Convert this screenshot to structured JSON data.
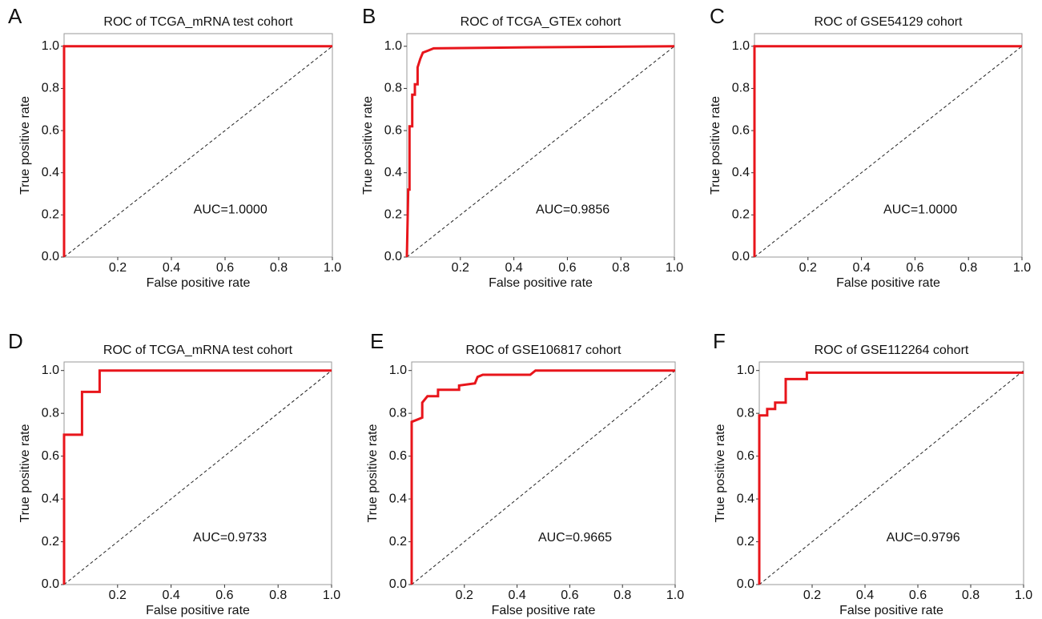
{
  "chart_data": [
    {
      "type": "line",
      "panel": "A",
      "title": "ROC of TCGA_mRNA test cohort",
      "x_label": "False positive rate",
      "y_label": "True positive rate",
      "annotation": "AUC=1.0000",
      "color": "#e8151b",
      "x": [
        0,
        0,
        1
      ],
      "values": [
        0,
        1,
        1
      ],
      "xlim": [
        0,
        1
      ],
      "ylim": [
        0,
        1.06
      ],
      "xticks": [
        0.2,
        0.4,
        0.6,
        0.8,
        {
          "value": 1,
          "label": "1.0"
        }
      ],
      "yticks": [
        {
          "value": 0,
          "label": "0.0"
        },
        0.2,
        0.4,
        0.6,
        0.8,
        {
          "value": 1,
          "label": "1.0"
        }
      ]
    },
    {
      "type": "line",
      "panel": "B",
      "title": "ROC of TCGA_GTEx cohort",
      "x_label": "False positive rate",
      "y_label": "True positive rate",
      "annotation": "AUC=0.9856",
      "color": "#e8151b",
      "x": [
        0,
        0.005,
        0.01,
        0.01,
        0.02,
        0.02,
        0.03,
        0.03,
        0.04,
        0.04,
        0.05,
        0.06,
        0.08,
        0.1,
        0.45,
        1
      ],
      "values": [
        0,
        0.32,
        0.32,
        0.62,
        0.62,
        0.77,
        0.77,
        0.82,
        0.82,
        0.9,
        0.94,
        0.97,
        0.98,
        0.99,
        0.995,
        1
      ],
      "xlim": [
        0,
        1
      ],
      "ylim": [
        0,
        1.06
      ],
      "xticks": [
        0.2,
        0.4,
        0.6,
        0.8,
        {
          "value": 1,
          "label": "1.0"
        }
      ],
      "yticks": [
        {
          "value": 0,
          "label": "0.0"
        },
        0.2,
        0.4,
        0.6,
        0.8,
        {
          "value": 1,
          "label": "1.0"
        }
      ]
    },
    {
      "type": "line",
      "panel": "C",
      "title": "ROC of GSE54129 cohort",
      "x_label": "False positive rate",
      "y_label": "True positive rate",
      "annotation": "AUC=1.0000",
      "color": "#e8151b",
      "x": [
        0,
        0,
        1
      ],
      "values": [
        0,
        1,
        1
      ],
      "xlim": [
        0,
        1
      ],
      "ylim": [
        0,
        1.06
      ],
      "xticks": [
        0.2,
        0.4,
        0.6,
        0.8,
        {
          "value": 1,
          "label": "1.0"
        }
      ],
      "yticks": [
        {
          "value": 0,
          "label": "0.0"
        },
        0.2,
        0.4,
        0.6,
        0.8,
        {
          "value": 1,
          "label": "1.0"
        }
      ]
    },
    {
      "type": "line",
      "panel": "D",
      "title": "ROC of TCGA_mRNA test cohort",
      "x_label": "False positive rate",
      "y_label": "True positive rate",
      "annotation": "AUC=0.9733",
      "color": "#e8151b",
      "x": [
        0,
        0,
        0.067,
        0.067,
        0.133,
        0.133,
        1
      ],
      "values": [
        0,
        0.7,
        0.7,
        0.9,
        0.9,
        1,
        1
      ],
      "xlim": [
        0,
        1
      ],
      "ylim": [
        0,
        1.04
      ],
      "xticks": [
        0.2,
        0.4,
        0.6,
        0.8,
        {
          "value": 1,
          "label": "1.0"
        }
      ],
      "yticks": [
        {
          "value": 0,
          "label": "0.0"
        },
        0.2,
        0.4,
        0.6,
        0.8,
        {
          "value": 1,
          "label": "1.0"
        }
      ]
    },
    {
      "type": "line",
      "panel": "E",
      "title": "ROC of GSE106817 cohort",
      "x_label": "False positive rate",
      "y_label": "True positive rate",
      "annotation": "AUC=0.9665",
      "color": "#e8151b",
      "x": [
        0,
        0,
        0.02,
        0.04,
        0.04,
        0.06,
        0.1,
        0.1,
        0.18,
        0.18,
        0.24,
        0.25,
        0.27,
        0.45,
        0.47,
        1
      ],
      "values": [
        0,
        0.76,
        0.77,
        0.78,
        0.85,
        0.88,
        0.88,
        0.91,
        0.91,
        0.93,
        0.94,
        0.97,
        0.98,
        0.98,
        1,
        1
      ],
      "xlim": [
        0,
        1
      ],
      "ylim": [
        0,
        1.04
      ],
      "xticks": [
        0.2,
        0.4,
        0.6,
        0.8,
        {
          "value": 1,
          "label": "1.0"
        }
      ],
      "yticks": [
        {
          "value": 0,
          "label": "0.0"
        },
        0.2,
        0.4,
        0.6,
        0.8,
        {
          "value": 1,
          "label": "1.0"
        }
      ]
    },
    {
      "type": "line",
      "panel": "F",
      "title": "ROC of GSE112264 cohort",
      "x_label": "False positive rate",
      "y_label": "True positive rate",
      "annotation": "AUC=0.9796",
      "color": "#e8151b",
      "x": [
        0,
        0,
        0.03,
        0.03,
        0.06,
        0.06,
        0.1,
        0.1,
        0.18,
        0.18,
        1
      ],
      "values": [
        0,
        0.79,
        0.79,
        0.82,
        0.82,
        0.85,
        0.85,
        0.96,
        0.96,
        0.99,
        0.99
      ],
      "xlim": [
        0,
        1
      ],
      "ylim": [
        0,
        1.04
      ],
      "xticks": [
        0.2,
        0.4,
        0.6,
        0.8,
        {
          "value": 1,
          "label": "1.0"
        }
      ],
      "yticks": [
        {
          "value": 0,
          "label": "0.0"
        },
        0.2,
        0.4,
        0.6,
        0.8,
        {
          "value": 1,
          "label": "1.0"
        }
      ]
    }
  ]
}
